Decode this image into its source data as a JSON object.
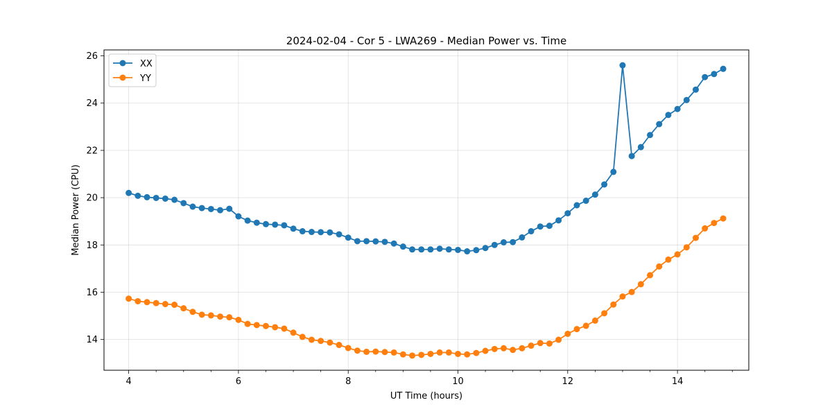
{
  "chart_data": {
    "type": "line",
    "title": "2024-02-04 - Cor 5 - LWA269 - Median Power vs. Time",
    "xlabel": "UT Time (hours)",
    "ylabel": "Median Power (CPU)",
    "xlim": [
      3.55,
      15.3
    ],
    "ylim": [
      12.7,
      26.25
    ],
    "xticks": [
      4,
      6,
      8,
      10,
      12,
      14
    ],
    "xtick_labels": [
      "4",
      "6",
      "8",
      "10",
      "12",
      "14"
    ],
    "xminor_step": 0.5,
    "yticks": [
      14,
      16,
      18,
      20,
      22,
      24,
      26
    ],
    "ytick_labels": [
      "14",
      "16",
      "18",
      "20",
      "22",
      "24",
      "26"
    ],
    "grid": true,
    "legend_position": "top-left",
    "x": [
      4.0,
      4.1667,
      4.3333,
      4.5,
      4.6667,
      4.8333,
      5.0,
      5.1667,
      5.3333,
      5.5,
      5.6667,
      5.8333,
      6.0,
      6.1667,
      6.3333,
      6.5,
      6.6667,
      6.8333,
      7.0,
      7.1667,
      7.3333,
      7.5,
      7.6667,
      7.8333,
      8.0,
      8.1667,
      8.3333,
      8.5,
      8.6667,
      8.8333,
      9.0,
      9.1667,
      9.3333,
      9.5,
      9.6667,
      9.8333,
      10.0,
      10.1667,
      10.3333,
      10.5,
      10.6667,
      10.8333,
      11.0,
      11.1667,
      11.3333,
      11.5,
      11.6667,
      11.8333,
      12.0,
      12.1667,
      12.3333,
      12.5,
      12.6667,
      12.8333,
      13.0,
      13.1667,
      13.3333,
      13.5,
      13.6667,
      13.8333,
      14.0,
      14.1667,
      14.3333,
      14.5,
      14.6667,
      14.8333
    ],
    "series": [
      {
        "name": "XX",
        "color": "#1f77b4",
        "values": [
          20.2,
          20.08,
          20.02,
          19.99,
          19.96,
          19.91,
          19.77,
          19.62,
          19.56,
          19.52,
          19.47,
          19.53,
          19.21,
          19.03,
          18.94,
          18.88,
          18.86,
          18.83,
          18.69,
          18.58,
          18.55,
          18.54,
          18.53,
          18.45,
          18.31,
          18.16,
          18.16,
          18.15,
          18.13,
          18.06,
          17.93,
          17.81,
          17.81,
          17.81,
          17.84,
          17.81,
          17.79,
          17.73,
          17.78,
          17.87,
          18.0,
          18.11,
          18.12,
          18.32,
          18.58,
          18.78,
          18.81,
          19.04,
          19.34,
          19.68,
          19.87,
          20.13,
          20.56,
          21.09,
          25.6,
          21.76,
          22.14,
          22.65,
          23.11,
          23.5,
          23.75,
          24.13,
          24.57,
          25.1,
          25.23,
          25.45
        ]
      },
      {
        "name": "YY",
        "color": "#ff7f0e",
        "values": [
          15.73,
          15.62,
          15.58,
          15.54,
          15.5,
          15.47,
          15.32,
          15.17,
          15.05,
          15.02,
          14.97,
          14.94,
          14.83,
          14.66,
          14.61,
          14.57,
          14.52,
          14.46,
          14.29,
          14.11,
          13.99,
          13.94,
          13.87,
          13.77,
          13.64,
          13.53,
          13.48,
          13.49,
          13.47,
          13.45,
          13.37,
          13.32,
          13.35,
          13.39,
          13.45,
          13.45,
          13.39,
          13.37,
          13.43,
          13.52,
          13.6,
          13.63,
          13.56,
          13.63,
          13.74,
          13.85,
          13.83,
          13.99,
          14.24,
          14.44,
          14.58,
          14.8,
          15.11,
          15.48,
          15.82,
          16.01,
          16.34,
          16.72,
          17.09,
          17.38,
          17.6,
          17.9,
          18.3,
          18.7,
          18.93,
          19.12
        ]
      }
    ]
  }
}
